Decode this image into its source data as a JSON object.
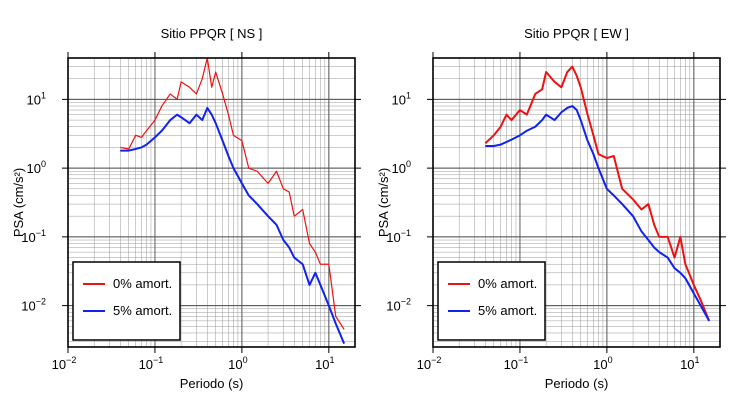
{
  "chart_data": [
    {
      "type": "line",
      "title": "Sitio PPQR [ NS ]",
      "x_label": "Periodo (s)",
      "y_label": "PSA (cm/s²)",
      "log_x": true,
      "log_y": true,
      "grid": true,
      "legend": "lower left",
      "xlim": [
        0.01,
        20
      ],
      "ylim": [
        0.0025,
        40
      ],
      "xticks": [
        {
          "value": 0.01,
          "label": "10",
          "exponent": "−2"
        },
        {
          "value": 0.1,
          "label": "10",
          "exponent": "−1"
        },
        {
          "value": 1,
          "label": "10",
          "exponent": "0"
        },
        {
          "value": 10,
          "label": "10",
          "exponent": "1"
        }
      ],
      "yticks": [
        {
          "value": 0.01,
          "label": "10",
          "exponent": "−2"
        },
        {
          "value": 0.1,
          "label": "10",
          "exponent": "−1"
        },
        {
          "value": 1,
          "label": "10",
          "exponent": "0"
        },
        {
          "value": 10,
          "label": "10",
          "exponent": "1"
        }
      ],
      "x": [
        0.04,
        0.05,
        0.06,
        0.07,
        0.08,
        0.1,
        0.12,
        0.15,
        0.18,
        0.2,
        0.25,
        0.3,
        0.35,
        0.4,
        0.45,
        0.5,
        0.6,
        0.7,
        0.8,
        1.0,
        1.2,
        1.5,
        2,
        2.5,
        3,
        3.5,
        4,
        5,
        6,
        7,
        8,
        10,
        12,
        15
      ],
      "series": [
        {
          "name": "0% amort.",
          "color": "#ee1111",
          "width": 1.2,
          "values": [
            2.0,
            1.9,
            3,
            2.8,
            3.5,
            5,
            8,
            12,
            10,
            18,
            15,
            12,
            20,
            40,
            15,
            25,
            12,
            6,
            3,
            2.5,
            1.0,
            0.9,
            0.6,
            0.9,
            0.5,
            0.45,
            0.2,
            0.25,
            0.08,
            0.06,
            0.04,
            0.04,
            0.007,
            0.0045
          ]
        },
        {
          "name": "5% amort.",
          "color": "#1122ee",
          "width": 2,
          "values": [
            1.8,
            1.8,
            1.9,
            2.0,
            2.2,
            2.8,
            3.5,
            5,
            6,
            5.5,
            4.5,
            6,
            5,
            7.5,
            6,
            4.5,
            2.5,
            1.5,
            1.0,
            0.6,
            0.4,
            0.3,
            0.2,
            0.15,
            0.09,
            0.07,
            0.05,
            0.04,
            0.02,
            0.03,
            0.02,
            0.01,
            0.0055,
            0.0028
          ]
        }
      ]
    },
    {
      "type": "line",
      "title": "Sitio PPQR [ EW ]",
      "x_label": "Periodo (s)",
      "y_label": "PSA (cm/s²)",
      "log_x": true,
      "log_y": true,
      "grid": true,
      "legend": "lower left",
      "xlim": [
        0.01,
        20
      ],
      "ylim": [
        0.0025,
        40
      ],
      "xticks": [
        {
          "value": 0.01,
          "label": "10",
          "exponent": "−2"
        },
        {
          "value": 0.1,
          "label": "10",
          "exponent": "−1"
        },
        {
          "value": 1,
          "label": "10",
          "exponent": "0"
        },
        {
          "value": 10,
          "label": "10",
          "exponent": "1"
        }
      ],
      "yticks": [
        {
          "value": 0.01,
          "label": "10",
          "exponent": "−2"
        },
        {
          "value": 0.1,
          "label": "10",
          "exponent": "−1"
        },
        {
          "value": 1,
          "label": "10",
          "exponent": "0"
        },
        {
          "value": 10,
          "label": "10",
          "exponent": "1"
        }
      ],
      "x": [
        0.04,
        0.05,
        0.06,
        0.07,
        0.08,
        0.1,
        0.12,
        0.15,
        0.18,
        0.2,
        0.25,
        0.3,
        0.35,
        0.4,
        0.45,
        0.5,
        0.6,
        0.7,
        0.8,
        1.0,
        1.2,
        1.5,
        2,
        2.5,
        3,
        3.5,
        4,
        5,
        6,
        7,
        8,
        10,
        12,
        15
      ],
      "series": [
        {
          "name": "0% amort.",
          "color": "#ee1111",
          "width": 2,
          "values": [
            2.3,
            3,
            4,
            6,
            5,
            7,
            6,
            12,
            14,
            25,
            18,
            15,
            25,
            30,
            22,
            15,
            6,
            3,
            1.6,
            1.4,
            1.5,
            0.5,
            0.35,
            0.25,
            0.3,
            0.15,
            0.1,
            0.1,
            0.05,
            0.1,
            0.04,
            0.02,
            0.012,
            0.006
          ]
        },
        {
          "name": "5% amort.",
          "color": "#1122ee",
          "width": 2,
          "values": [
            2.1,
            2.1,
            2.2,
            2.4,
            2.6,
            3,
            3.5,
            4,
            5,
            6,
            5,
            6.5,
            7.5,
            8,
            7,
            5,
            2.5,
            1.6,
            1.0,
            0.5,
            0.4,
            0.3,
            0.2,
            0.12,
            0.09,
            0.07,
            0.06,
            0.05,
            0.035,
            0.03,
            0.025,
            0.015,
            0.01,
            0.006
          ]
        }
      ]
    }
  ]
}
